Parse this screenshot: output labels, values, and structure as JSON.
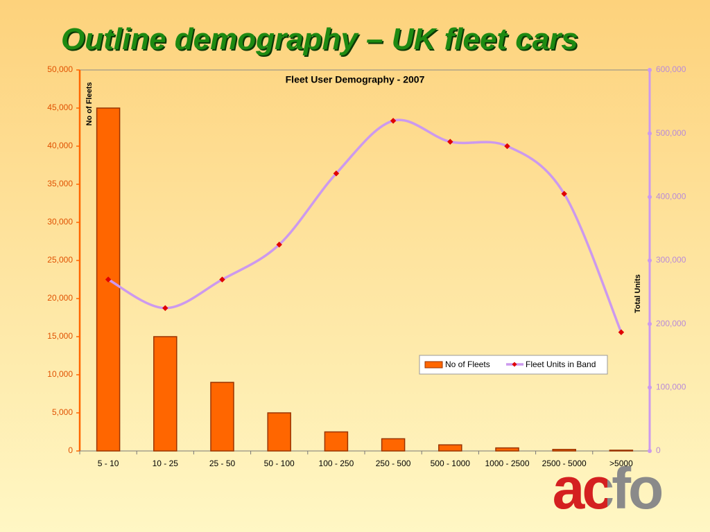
{
  "title": "Outline demography – UK fleet cars",
  "logo": "acfo",
  "chart_data": {
    "type": "bar_line",
    "title": "Fleet User Demography - 2007",
    "y_label": "No of Fleets",
    "y2_label": "Total Units",
    "categories": [
      "5 - 10",
      "10 - 25",
      "25 - 50",
      "50 - 100",
      "100 - 250",
      "250 - 500",
      "500 - 1000",
      "1000 - 2500",
      "2500 - 5000",
      ">5000"
    ],
    "series": [
      {
        "name": "No of Fleets",
        "type": "bar",
        "color": "#ff6600",
        "values": [
          45000,
          15000,
          9000,
          5000,
          2500,
          1600,
          800,
          400,
          200,
          100
        ]
      },
      {
        "name": "Fleet Units in Band",
        "type": "line",
        "axis": "y2",
        "color": "#cc99ee",
        "marker_color": "#e00000",
        "values": [
          270000,
          225000,
          270000,
          325000,
          437000,
          520000,
          487000,
          480000,
          405000,
          187000
        ]
      }
    ],
    "ylim": [
      0,
      50000
    ],
    "yticks": [
      0,
      {
        "value": 5000,
        "label": "5,000"
      },
      {
        "value": 10000,
        "label": "10,000"
      },
      {
        "value": 15000,
        "label": "15,000"
      },
      {
        "value": 20000,
        "label": "20,000"
      },
      {
        "value": 25000,
        "label": "25,000"
      },
      {
        "value": 30000,
        "label": "30,000"
      },
      {
        "value": 35000,
        "label": "35,000"
      },
      {
        "value": 40000,
        "label": "40,000"
      },
      {
        "value": 45000,
        "label": "45,000"
      },
      {
        "value": 50000,
        "label": "50,000"
      }
    ],
    "y2lim": [
      0,
      600000
    ],
    "y2ticks": [
      0,
      {
        "value": 100000,
        "label": "100,000"
      },
      {
        "value": 200000,
        "label": "200,000"
      },
      {
        "value": 300000,
        "label": "300,000"
      },
      {
        "value": 400000,
        "label": "400,000"
      },
      {
        "value": 500000,
        "label": "500,000"
      },
      {
        "value": 600000,
        "label": "600,000"
      }
    ],
    "legend": "lower-right"
  }
}
